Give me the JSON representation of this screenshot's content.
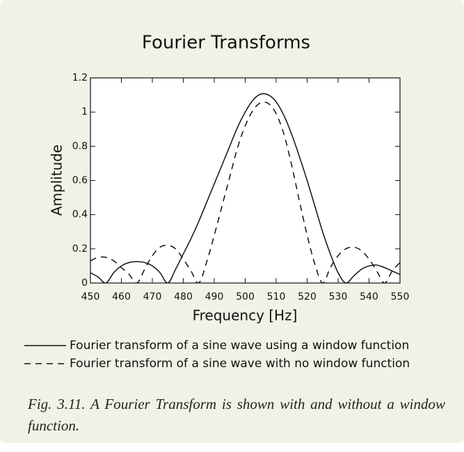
{
  "chart_data": {
    "type": "line",
    "title": "Fourier Transforms",
    "xlabel": "Frequency [Hz]",
    "ylabel": "Amplitude",
    "x": [
      450,
      452.5,
      455,
      457.5,
      460,
      462.5,
      465,
      467.5,
      470,
      472.5,
      475,
      477.5,
      480,
      482.5,
      485,
      487.5,
      490,
      492.5,
      495,
      497.5,
      500,
      502.5,
      505,
      507.5,
      510,
      512.5,
      515,
      517.5,
      520,
      522.5,
      525,
      527.5,
      530,
      532.5,
      535,
      537.5,
      540,
      542.5,
      545,
      547.5,
      550
    ],
    "series": [
      {
        "name": "Fourier transform of a sine wave using a window function",
        "color": "#111111",
        "style": "solid",
        "values": [
          0.06,
          0.035,
          0,
          0.06,
          0.1,
          0.12,
          0.125,
          0.12,
          0.1,
          0.06,
          0,
          0.08,
          0.17,
          0.26,
          0.36,
          0.47,
          0.58,
          0.69,
          0.8,
          0.91,
          1.0,
          1.07,
          1.105,
          1.1,
          1.06,
          0.98,
          0.87,
          0.74,
          0.6,
          0.45,
          0.3,
          0.17,
          0.06,
          0,
          0.04,
          0.08,
          0.1,
          0.105,
          0.09,
          0.07,
          0.05
        ]
      },
      {
        "name": "Fourier transform of a sine wave with no window function",
        "color": "#111111",
        "style": "dashed",
        "values": [
          0.13,
          0.15,
          0.15,
          0.13,
          0.09,
          0.05,
          0,
          0.08,
          0.16,
          0.21,
          0.22,
          0.2,
          0.14,
          0.07,
          0,
          0.12,
          0.28,
          0.45,
          0.62,
          0.79,
          0.92,
          1.01,
          1.055,
          1.05,
          0.99,
          0.87,
          0.69,
          0.48,
          0.28,
          0.11,
          0,
          0.09,
          0.16,
          0.2,
          0.21,
          0.19,
          0.14,
          0.07,
          0,
          0.07,
          0.12
        ]
      }
    ],
    "xlim": [
      450,
      550
    ],
    "xticks": [
      450,
      460,
      470,
      480,
      490,
      500,
      510,
      520,
      530,
      540,
      550
    ],
    "ylim": [
      0,
      1.2
    ],
    "yticks": [
      0,
      0.2,
      0.4,
      0.6,
      0.8,
      1,
      1.2
    ],
    "grid": false,
    "caption": "Fig. 3.11. A Fourier Transform is shown with and without a window function."
  }
}
